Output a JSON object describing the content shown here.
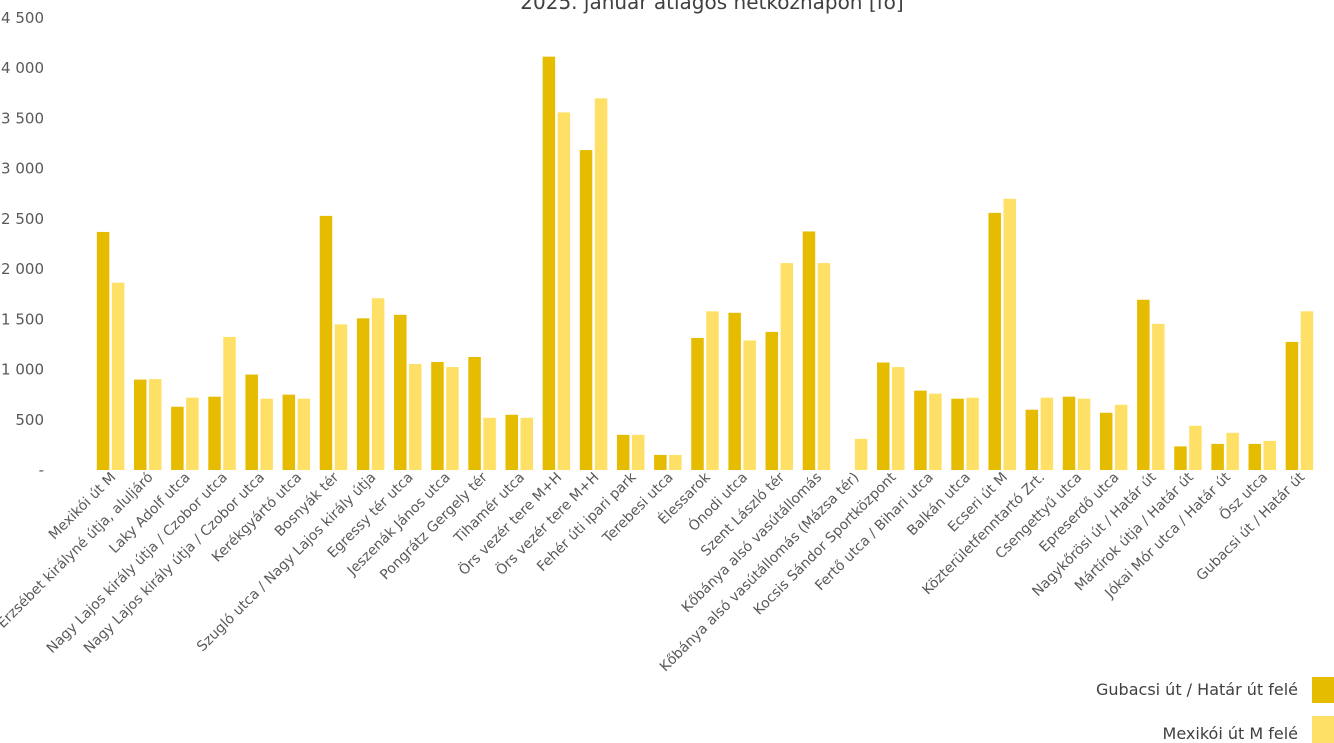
{
  "chart_data": {
    "type": "bar",
    "title": "2025. január átlagos hétköznapon [fő]",
    "xlabel": "",
    "ylabel": "",
    "ylim": [
      0,
      4500
    ],
    "yticks": [
      0,
      500,
      1000,
      1500,
      2000,
      2500,
      3000,
      3500,
      4000,
      4500
    ],
    "ytick_labels": [
      "-",
      "500",
      "1 000",
      "1 500",
      "2 000",
      "2 500",
      "3 000",
      "3 500",
      "4 000",
      "4 500"
    ],
    "grid": false,
    "legend_position": "bottom-right",
    "categories": [
      "Mexikói út M",
      "Erzsébet királyné útja, aluljáró",
      "Laky Adolf utca",
      "Nagy Lajos király útja / Czobor utca",
      "Nagy Lajos király útja / Czobor utca",
      "Kerékgyártó utca",
      "Bosnyák tér",
      "Szugló utca / Nagy Lajos király útja",
      "Egressy tér utca",
      "Jeszenák János utca",
      "Pongrátz Gergely tér",
      "Tihamér utca",
      "Örs vezér tere M+H",
      "Örs vezér tere M+H",
      "Fehér úti ipari park",
      "Terebesi utca",
      "Élessarok",
      "Ónodi utca",
      "Szent László tér",
      "Kőbánya alsó vasútállomás",
      "Kőbánya alsó vasútállomás (Mázsa tér)",
      "Kocsis Sándor Sportközpont",
      "Fertő utca / Bihari utca",
      "Balkán utca",
      "Ecseri út M",
      "Közterületfenntartó Zrt.",
      "Csengettyű utca",
      "Epreserdő utca",
      "Nagykőrösi út / Határ út",
      "Mártírok útja / Határ út",
      "Jókai Mór utca / Határ út",
      "Ősz utca",
      "Gubacsi út / Határ út"
    ],
    "series": [
      {
        "name": "Gubacsi út / Határ út felé",
        "color": "#e6bc00",
        "values": [
          2370,
          900,
          630,
          730,
          950,
          750,
          2530,
          1510,
          1545,
          1075,
          1125,
          550,
          4115,
          3185,
          350,
          150,
          1315,
          1565,
          1375,
          2375,
          null,
          1070,
          790,
          710,
          2560,
          600,
          730,
          570,
          1695,
          235,
          260,
          260,
          1275
        ]
      },
      {
        "name": "Mexikói út M felé",
        "color": "#ffe066",
        "values": [
          1865,
          905,
          720,
          1325,
          710,
          710,
          1450,
          1710,
          1055,
          1025,
          520,
          520,
          3560,
          3700,
          350,
          150,
          1580,
          1290,
          2060,
          2060,
          310,
          1025,
          760,
          720,
          2700,
          720,
          710,
          650,
          1455,
          440,
          370,
          290,
          1580
        ]
      }
    ]
  }
}
